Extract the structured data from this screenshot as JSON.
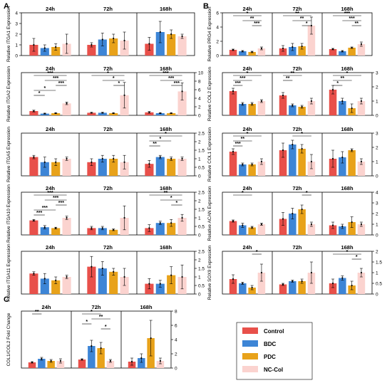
{
  "colors": {
    "Control": "#e8504a",
    "BDC": "#3d85d6",
    "PDC": "#e8a21a",
    "NC-Col": "#fbd3cf",
    "axis": "#000000",
    "significance": "#000000"
  },
  "legend": {
    "title": "",
    "items": [
      "Control",
      "BDC",
      "PDC",
      "NC-Col"
    ]
  },
  "chart_data": [
    {
      "panel": "A",
      "type": "bar",
      "gene": "ITGA1",
      "ylabel": "Relative ITGA1 Expression",
      "categories": [
        "24h",
        "72h",
        "168h"
      ],
      "ylim": [
        0,
        4
      ],
      "yticks": [
        0,
        1,
        2,
        3,
        4
      ],
      "series": [
        {
          "name": "Control",
          "values": [
            1.0,
            1.0,
            1.1
          ]
        },
        {
          "name": "BDC",
          "values": [
            0.7,
            1.5,
            2.2
          ]
        },
        {
          "name": "PDC",
          "values": [
            0.8,
            1.6,
            2.0
          ]
        },
        {
          "name": "NC-Col",
          "values": [
            1.1,
            1.4,
            1.8
          ]
        }
      ],
      "errors": [
        [
          0.6,
          0.2,
          0.6
        ],
        [
          0.3,
          0.6,
          1.0
        ],
        [
          0.3,
          0.4,
          0.4
        ],
        [
          0.9,
          0.8,
          0.2
        ]
      ],
      "significance": []
    },
    {
      "panel": "A",
      "type": "bar",
      "gene": "ITGA2",
      "ylabel": "Relative ITGA2 Expression",
      "categories": [
        "24h",
        "72h",
        "168h"
      ],
      "ylim": [
        0,
        10
      ],
      "yticks": [
        0,
        2,
        4,
        6,
        8,
        10
      ],
      "series": [
        {
          "name": "Control",
          "values": [
            1.0,
            0.6,
            0.7
          ]
        },
        {
          "name": "BDC",
          "values": [
            0.4,
            0.6,
            0.5
          ]
        },
        {
          "name": "PDC",
          "values": [
            0.5,
            0.5,
            0.5
          ]
        },
        {
          "name": "NC-Col",
          "values": [
            2.8,
            4.7,
            5.6
          ]
        }
      ],
      "errors": [
        [
          0.2,
          0.1,
          0.2
        ],
        [
          0.1,
          0.1,
          0.1
        ],
        [
          0.1,
          0.1,
          0.1
        ],
        [
          0.3,
          3.0,
          2.0
        ]
      ],
      "significance": [
        {
          "group": "24h",
          "from": 0,
          "to": 3,
          "label": "***"
        },
        {
          "group": "24h",
          "from": 1,
          "to": 3,
          "label": "***"
        },
        {
          "group": "24h",
          "from": 2,
          "to": 3,
          "label": "***"
        },
        {
          "group": "24h",
          "from": 0,
          "to": 2,
          "label": "*"
        },
        {
          "group": "24h",
          "from": 0,
          "to": 1,
          "label": "*"
        },
        {
          "group": "72h",
          "from": 0,
          "to": 3,
          "label": "*"
        },
        {
          "group": "72h",
          "from": 1,
          "to": 3,
          "label": "*"
        },
        {
          "group": "72h",
          "from": 2,
          "to": 3,
          "label": "*"
        },
        {
          "group": "168h",
          "from": 0,
          "to": 3,
          "label": "***"
        },
        {
          "group": "168h",
          "from": 1,
          "to": 3,
          "label": "***"
        },
        {
          "group": "168h",
          "from": 2,
          "to": 3,
          "label": "***"
        }
      ]
    },
    {
      "panel": "A",
      "type": "bar",
      "gene": "ITGA5",
      "ylabel": "Relative ITGA5 Expression",
      "categories": [
        "24h",
        "72h",
        "168h"
      ],
      "ylim": [
        0,
        2.5
      ],
      "yticks": [
        0,
        0.5,
        1.0,
        1.5,
        2.0,
        2.5
      ],
      "series": [
        {
          "name": "Control",
          "values": [
            1.1,
            0.8,
            0.7
          ]
        },
        {
          "name": "BDC",
          "values": [
            0.8,
            1.0,
            1.1
          ]
        },
        {
          "name": "PDC",
          "values": [
            0.8,
            1.0,
            1.0
          ]
        },
        {
          "name": "NC-Col",
          "values": [
            1.0,
            0.8,
            1.0
          ]
        }
      ],
      "errors": [
        [
          0.1,
          0.2,
          0.2
        ],
        [
          0.3,
          0.2,
          0.1
        ],
        [
          0.2,
          0.2,
          0.1
        ],
        [
          0.1,
          0.4,
          0.1
        ]
      ],
      "significance": [
        {
          "group": "168h",
          "from": 0,
          "to": 3,
          "label": "*"
        },
        {
          "group": "168h",
          "from": 0,
          "to": 2,
          "label": "*"
        },
        {
          "group": "168h",
          "from": 0,
          "to": 1,
          "label": "**"
        }
      ]
    },
    {
      "panel": "A",
      "type": "bar",
      "gene": "ITGA10",
      "ylabel": "Relative ITGA10 Expression",
      "categories": [
        "24h",
        "72h",
        "168h"
      ],
      "ylim": [
        0,
        2.5
      ],
      "yticks": [
        0,
        0.5,
        1.0,
        1.5,
        2.0,
        2.5
      ],
      "series": [
        {
          "name": "Control",
          "values": [
            0.85,
            0.4,
            0.4
          ]
        },
        {
          "name": "BDC",
          "values": [
            0.45,
            0.4,
            0.7
          ]
        },
        {
          "name": "PDC",
          "values": [
            0.4,
            0.3,
            0.7
          ]
        },
        {
          "name": "NC-Col",
          "values": [
            1.0,
            1.0,
            1.0
          ]
        }
      ],
      "errors": [
        [
          0.05,
          0.1,
          0.2
        ],
        [
          0.1,
          0.1,
          0.1
        ],
        [
          0.05,
          0.05,
          0.2
        ],
        [
          0.1,
          0.7,
          0.2
        ]
      ],
      "significance": [
        {
          "group": "24h",
          "from": 0,
          "to": 3,
          "label": "***"
        },
        {
          "group": "24h",
          "from": 1,
          "to": 3,
          "label": "***"
        },
        {
          "group": "24h",
          "from": 2,
          "to": 3,
          "label": "***"
        },
        {
          "group": "24h",
          "from": 0,
          "to": 2,
          "label": "***"
        },
        {
          "group": "24h",
          "from": 0,
          "to": 1,
          "label": "***"
        },
        {
          "group": "168h",
          "from": 0,
          "to": 3,
          "label": "**"
        },
        {
          "group": "168h",
          "from": 1,
          "to": 3,
          "label": "*"
        },
        {
          "group": "168h",
          "from": 2,
          "to": 3,
          "label": "*"
        }
      ]
    },
    {
      "panel": "A",
      "type": "bar",
      "gene": "ITGA11",
      "ylabel": "Relative ITGA11 Expression",
      "categories": [
        "24h",
        "72h",
        "168h"
      ],
      "ylim": [
        0,
        2.5
      ],
      "yticks": [
        0,
        0.5,
        1.0,
        1.5,
        2.0,
        2.5
      ],
      "series": [
        {
          "name": "Control",
          "values": [
            1.2,
            1.6,
            0.6
          ]
        },
        {
          "name": "BDC",
          "values": [
            0.9,
            1.5,
            0.6
          ]
        },
        {
          "name": "PDC",
          "values": [
            0.8,
            1.3,
            1.1
          ]
        },
        {
          "name": "NC-Col",
          "values": [
            1.0,
            1.0,
            1.0
          ]
        }
      ],
      "errors": [
        [
          0.1,
          0.6,
          0.3
        ],
        [
          0.3,
          0.4,
          0.2
        ],
        [
          0.2,
          0.2,
          0.5
        ],
        [
          0.1,
          0.5,
          0.7
        ]
      ],
      "significance": []
    },
    {
      "panel": "B",
      "type": "bar",
      "gene": "PRG4",
      "ylabel": "Relative PRG4 Expression",
      "categories": [
        "24h",
        "72h",
        "168h"
      ],
      "ylim": [
        0,
        6
      ],
      "yticks": [
        0,
        2,
        4,
        6
      ],
      "series": [
        {
          "name": "Control",
          "values": [
            0.8,
            1.0,
            0.9
          ]
        },
        {
          "name": "BDC",
          "values": [
            0.6,
            1.2,
            0.6
          ]
        },
        {
          "name": "PDC",
          "values": [
            0.5,
            1.3,
            1.1
          ]
        },
        {
          "name": "NC-Col",
          "values": [
            1.0,
            4.2,
            1.6
          ]
        }
      ],
      "errors": [
        [
          0.1,
          0.4,
          0.1
        ],
        [
          0.1,
          0.5,
          0.1
        ],
        [
          0.1,
          0.4,
          0.1
        ],
        [
          0.2,
          1.2,
          0.3
        ]
      ],
      "significance": [
        {
          "group": "24h",
          "from": 0,
          "to": 3,
          "label": "*"
        },
        {
          "group": "24h",
          "from": 1,
          "to": 3,
          "label": "**"
        },
        {
          "group": "24h",
          "from": 2,
          "to": 3,
          "label": "***"
        },
        {
          "group": "72h",
          "from": 0,
          "to": 3,
          "label": "**"
        },
        {
          "group": "72h",
          "from": 1,
          "to": 3,
          "label": "**"
        },
        {
          "group": "72h",
          "from": 2,
          "to": 3,
          "label": "*"
        },
        {
          "group": "168h",
          "from": 0,
          "to": 3,
          "label": "***"
        },
        {
          "group": "168h",
          "from": 1,
          "to": 3,
          "label": "***"
        },
        {
          "group": "168h",
          "from": 2,
          "to": 3,
          "label": "**"
        }
      ]
    },
    {
      "panel": "B",
      "type": "bar",
      "gene": "COL2",
      "ylabel": "Relative COL2 Expression",
      "categories": [
        "24h",
        "72h",
        "168h"
      ],
      "ylim": [
        0,
        3
      ],
      "yticks": [
        0,
        1,
        2,
        3
      ],
      "series": [
        {
          "name": "Control",
          "values": [
            1.7,
            1.4,
            1.8
          ]
        },
        {
          "name": "BDC",
          "values": [
            0.8,
            0.7,
            1.0
          ]
        },
        {
          "name": "PDC",
          "values": [
            0.8,
            0.6,
            0.5
          ]
        },
        {
          "name": "NC-Col",
          "values": [
            1.0,
            1.0,
            1.0
          ]
        }
      ],
      "errors": [
        [
          0.2,
          0.2,
          0.3
        ],
        [
          0.1,
          0.1,
          0.2
        ],
        [
          0.1,
          0.1,
          0.3
        ],
        [
          0.1,
          0.2,
          0.2
        ]
      ],
      "significance": [
        {
          "group": "24h",
          "from": 0,
          "to": 3,
          "label": "*"
        },
        {
          "group": "24h",
          "from": 0,
          "to": 2,
          "label": "***"
        },
        {
          "group": "24h",
          "from": 0,
          "to": 1,
          "label": "***"
        },
        {
          "group": "72h",
          "from": 0,
          "to": 2,
          "label": "**"
        },
        {
          "group": "72h",
          "from": 0,
          "to": 1,
          "label": "**"
        },
        {
          "group": "168h",
          "from": 0,
          "to": 3,
          "label": "*"
        },
        {
          "group": "168h",
          "from": 0,
          "to": 2,
          "label": "**"
        },
        {
          "group": "168h",
          "from": 0,
          "to": 1,
          "label": "*"
        }
      ]
    },
    {
      "panel": "B",
      "type": "bar",
      "gene": "COL1",
      "ylabel": "Relative COL1 Expression",
      "categories": [
        "24h",
        "72h",
        "168h"
      ],
      "ylim": [
        0,
        3
      ],
      "yticks": [
        0,
        1,
        2,
        3
      ],
      "series": [
        {
          "name": "Control",
          "values": [
            1.7,
            1.8,
            1.2
          ]
        },
        {
          "name": "BDC",
          "values": [
            0.8,
            2.2,
            1.3
          ]
        },
        {
          "name": "PDC",
          "values": [
            0.8,
            1.9,
            1.8
          ]
        },
        {
          "name": "NC-Col",
          "values": [
            1.0,
            1.0,
            1.0
          ]
        }
      ],
      "errors": [
        [
          0.2,
          0.5,
          0.6
        ],
        [
          0.1,
          0.3,
          0.4
        ],
        [
          0.1,
          0.3,
          0.1
        ],
        [
          0.2,
          0.5,
          0.2
        ]
      ],
      "significance": [
        {
          "group": "24h",
          "from": 0,
          "to": 3,
          "label": "*"
        },
        {
          "group": "24h",
          "from": 0,
          "to": 2,
          "label": "**"
        },
        {
          "group": "24h",
          "from": 0,
          "to": 1,
          "label": "***"
        },
        {
          "group": "72h",
          "from": 1,
          "to": 3,
          "label": "*"
        }
      ]
    },
    {
      "panel": "B",
      "type": "bar",
      "gene": "ACAN",
      "ylabel": "Relative ACAN Expression",
      "categories": [
        "24h",
        "72h",
        "168h"
      ],
      "ylim": [
        0,
        4
      ],
      "yticks": [
        0,
        1,
        2,
        3,
        4
      ],
      "series": [
        {
          "name": "Control",
          "values": [
            1.3,
            1.5,
            0.9
          ]
        },
        {
          "name": "BDC",
          "values": [
            0.9,
            2.0,
            0.8
          ]
        },
        {
          "name": "PDC",
          "values": [
            0.7,
            2.4,
            1.2
          ]
        },
        {
          "name": "NC-Col",
          "values": [
            1.0,
            1.0,
            1.0
          ]
        }
      ],
      "errors": [
        [
          0.1,
          0.6,
          0.3
        ],
        [
          0.2,
          0.5,
          0.2
        ],
        [
          0.1,
          0.4,
          0.5
        ],
        [
          0.1,
          0.2,
          0.2
        ]
      ],
      "significance": [
        {
          "group": "24h",
          "from": 0,
          "to": 2,
          "label": "*"
        },
        {
          "group": "72h",
          "from": 2,
          "to": 3,
          "label": "*"
        }
      ]
    },
    {
      "panel": "B",
      "type": "bar",
      "gene": "SOX9",
      "ylabel": "Relative SOX9 Expression",
      "categories": [
        "24h",
        "72h",
        "168h"
      ],
      "ylim": [
        0,
        2
      ],
      "yticks": [
        0.0,
        0.5,
        1.0,
        1.5,
        2.0
      ],
      "series": [
        {
          "name": "Control",
          "values": [
            0.7,
            0.45,
            0.5
          ]
        },
        {
          "name": "BDC",
          "values": [
            0.5,
            0.6,
            0.75
          ]
        },
        {
          "name": "PDC",
          "values": [
            0.3,
            0.6,
            0.4
          ]
        },
        {
          "name": "NC-Col",
          "values": [
            1.0,
            1.0,
            1.0
          ]
        }
      ],
      "errors": [
        [
          0.2,
          0.05,
          0.2
        ],
        [
          0.05,
          0.05,
          0.1
        ],
        [
          0.1,
          0.1,
          0.2
        ],
        [
          0.4,
          0.5,
          0.2
        ]
      ],
      "significance": [
        {
          "group": "24h",
          "from": 2,
          "to": 3,
          "label": "*"
        },
        {
          "group": "168h",
          "from": 0,
          "to": 3,
          "label": "*"
        },
        {
          "group": "168h",
          "from": 2,
          "to": 3,
          "label": "*"
        }
      ]
    },
    {
      "panel": "C",
      "type": "bar",
      "gene": "COL1/COL2",
      "ylabel": "COL1/COL2 Fold Change",
      "categories": [
        "24h",
        "72h",
        "168h"
      ],
      "ylim": [
        0,
        8
      ],
      "yticks": [
        0,
        2,
        4,
        6,
        8
      ],
      "series": [
        {
          "name": "Control",
          "values": [
            0.8,
            1.2,
            0.9
          ]
        },
        {
          "name": "BDC",
          "values": [
            1.3,
            3.1,
            1.4
          ]
        },
        {
          "name": "PDC",
          "values": [
            1.0,
            2.8,
            4.2
          ]
        },
        {
          "name": "NC-Col",
          "values": [
            1.0,
            1.0,
            1.0
          ]
        }
      ],
      "errors": [
        [
          0.1,
          0.1,
          0.5
        ],
        [
          0.2,
          0.8,
          0.6
        ],
        [
          0.2,
          0.8,
          2.5
        ],
        [
          0.3,
          0.2,
          0.4
        ]
      ],
      "significance": [
        {
          "group": "24h",
          "from": 0,
          "to": 1,
          "label": "**"
        },
        {
          "group": "72h",
          "from": 0,
          "to": 2,
          "label": "*"
        },
        {
          "group": "72h",
          "from": 1,
          "to": 3,
          "label": "**"
        },
        {
          "group": "72h",
          "from": 0,
          "to": 1,
          "label": "*"
        },
        {
          "group": "72h",
          "from": 2,
          "to": 3,
          "label": "*"
        }
      ]
    }
  ],
  "panel_labels": [
    "A",
    "B",
    "C"
  ]
}
